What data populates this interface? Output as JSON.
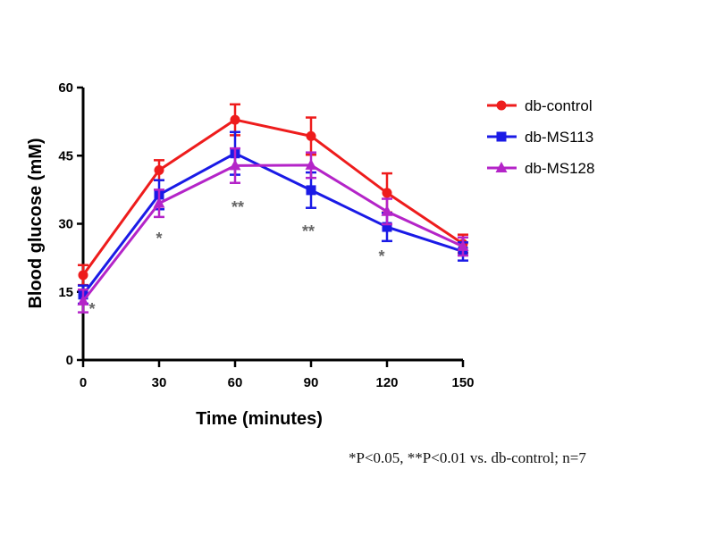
{
  "chart_data": {
    "type": "line",
    "xlabel": "Time (minutes)",
    "ylabel": "Blood glucose (mM)",
    "x": [
      0,
      30,
      60,
      90,
      120,
      150
    ],
    "xticks": [
      "0",
      "30",
      "60",
      "90",
      "120",
      "150"
    ],
    "yticks": [
      "0",
      "15",
      "30",
      "45",
      "60"
    ],
    "xlim": [
      0,
      150
    ],
    "ylim": [
      0,
      60
    ],
    "legend_position": "top-right",
    "series": [
      {
        "name": "db-control",
        "color": "#ee1c1c",
        "marker": "circle",
        "values": [
          18.7,
          41.8,
          52.9,
          49.3,
          36.8,
          25.6
        ],
        "errors": [
          2.2,
          2.2,
          3.4,
          4.1,
          4.3,
          2.0
        ]
      },
      {
        "name": "db-MS113",
        "color": "#1a1ae6",
        "marker": "square",
        "values": [
          14.4,
          36.4,
          45.5,
          37.4,
          29.3,
          23.9
        ],
        "errors": [
          2.0,
          3.2,
          4.7,
          3.9,
          3.1,
          2.0
        ]
      },
      {
        "name": "db-MS128",
        "color": "#b424c8",
        "marker": "triangle",
        "values": [
          13.0,
          34.5,
          42.8,
          42.9,
          32.7,
          25.0
        ],
        "errors": [
          2.5,
          3.0,
          3.8,
          2.8,
          2.8,
          2.0
        ]
      }
    ],
    "annotations": [
      {
        "x": 0,
        "text": "*"
      },
      {
        "x": 30,
        "text": "*"
      },
      {
        "x": 60,
        "text": "**"
      },
      {
        "x": 90,
        "text": "**"
      },
      {
        "x": 120,
        "text": "*"
      }
    ],
    "footnote": "*P<0.05, **P<0.01 vs. db-control; n=7"
  }
}
